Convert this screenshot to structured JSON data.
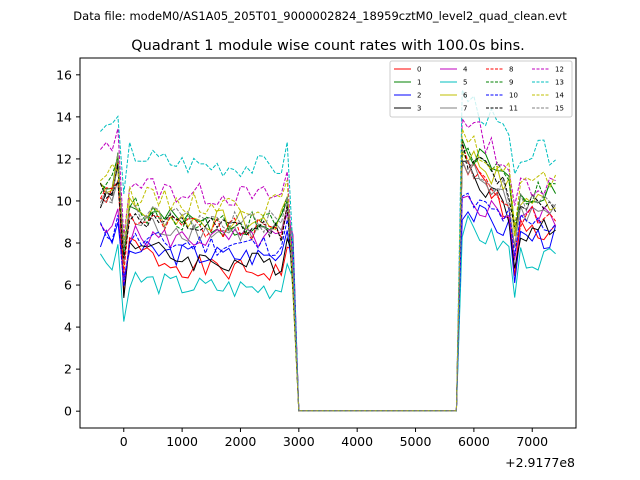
{
  "chart_data": {
    "type": "line",
    "supertitle": "Data file: modeM0/AS1A05_205T01_9000002824_18959cztM0_level2_quad_clean.evt",
    "title": "Quadrant 1 module wise count rates with 100.0s bins.",
    "xlabel": "",
    "ylabel": "",
    "x_offset_label": "+2.9177e8",
    "xlim": [
      -750,
      7750
    ],
    "ylim": [
      -0.8,
      16.8
    ],
    "xticks": [
      0,
      1000,
      2000,
      3000,
      4000,
      5000,
      6000,
      7000
    ],
    "yticks": [
      0,
      2,
      4,
      6,
      8,
      10,
      12,
      14,
      16
    ],
    "x_start": -400,
    "x_step": 100,
    "gap_x": [
      2950,
      5750
    ],
    "legend_position": "upper-right",
    "series": [
      {
        "name": "0",
        "color": "#ff0000",
        "style": "solid",
        "base": 6.6,
        "front": 10.5,
        "back": 8.5,
        "seed": 1
      },
      {
        "name": "1",
        "color": "#008000",
        "style": "solid",
        "base": 8.8,
        "front": 11.2,
        "back": 10.5,
        "seed": 2
      },
      {
        "name": "2",
        "color": "#0000ff",
        "style": "solid",
        "base": 7.4,
        "front": 8.2,
        "back": 8.3,
        "seed": 3
      },
      {
        "name": "3",
        "color": "#000000",
        "style": "solid",
        "base": 7.0,
        "front": 10.5,
        "back": 8.6,
        "seed": 4
      },
      {
        "name": "4",
        "color": "#bf00bf",
        "style": "solid",
        "base": 8.2,
        "front": 8.5,
        "back": 9.3,
        "seed": 5
      },
      {
        "name": "5",
        "color": "#00bfbf",
        "style": "solid",
        "base": 5.8,
        "front": 7.4,
        "back": 7.3,
        "seed": 6
      },
      {
        "name": "6",
        "color": "#bfbf00",
        "style": "solid",
        "base": 9.0,
        "front": 11.0,
        "back": 10.0,
        "seed": 7
      },
      {
        "name": "7",
        "color": "#808080",
        "style": "solid",
        "base": 8.5,
        "front": 10.2,
        "back": 9.5,
        "seed": 8
      },
      {
        "name": "8",
        "color": "#ff0000",
        "style": "dashed",
        "base": 8.6,
        "front": 10.6,
        "back": 9.2,
        "seed": 9
      },
      {
        "name": "9",
        "color": "#008000",
        "style": "dashed",
        "base": 9.0,
        "front": 11.0,
        "back": 10.3,
        "seed": 10
      },
      {
        "name": "10",
        "color": "#0000ff",
        "style": "dashed",
        "base": 7.9,
        "front": 8.6,
        "back": 8.9,
        "seed": 11
      },
      {
        "name": "11",
        "color": "#000000",
        "style": "dashed",
        "base": 8.6,
        "front": 10.8,
        "back": 10.0,
        "seed": 12
      },
      {
        "name": "12",
        "color": "#bf00bf",
        "style": "dashed",
        "base": 10.2,
        "front": 12.6,
        "back": 10.8,
        "seed": 13
      },
      {
        "name": "13",
        "color": "#00bfbf",
        "style": "dashed",
        "base": 11.6,
        "front": 13.6,
        "back": 12.3,
        "seed": 14
      },
      {
        "name": "14",
        "color": "#bfbf00",
        "style": "dashed",
        "base": 9.8,
        "front": 11.4,
        "back": 10.9,
        "seed": 15
      },
      {
        "name": "15",
        "color": "#808080",
        "style": "dashed",
        "base": 9.0,
        "front": 10.4,
        "back": 9.9,
        "seed": 16
      }
    ]
  }
}
